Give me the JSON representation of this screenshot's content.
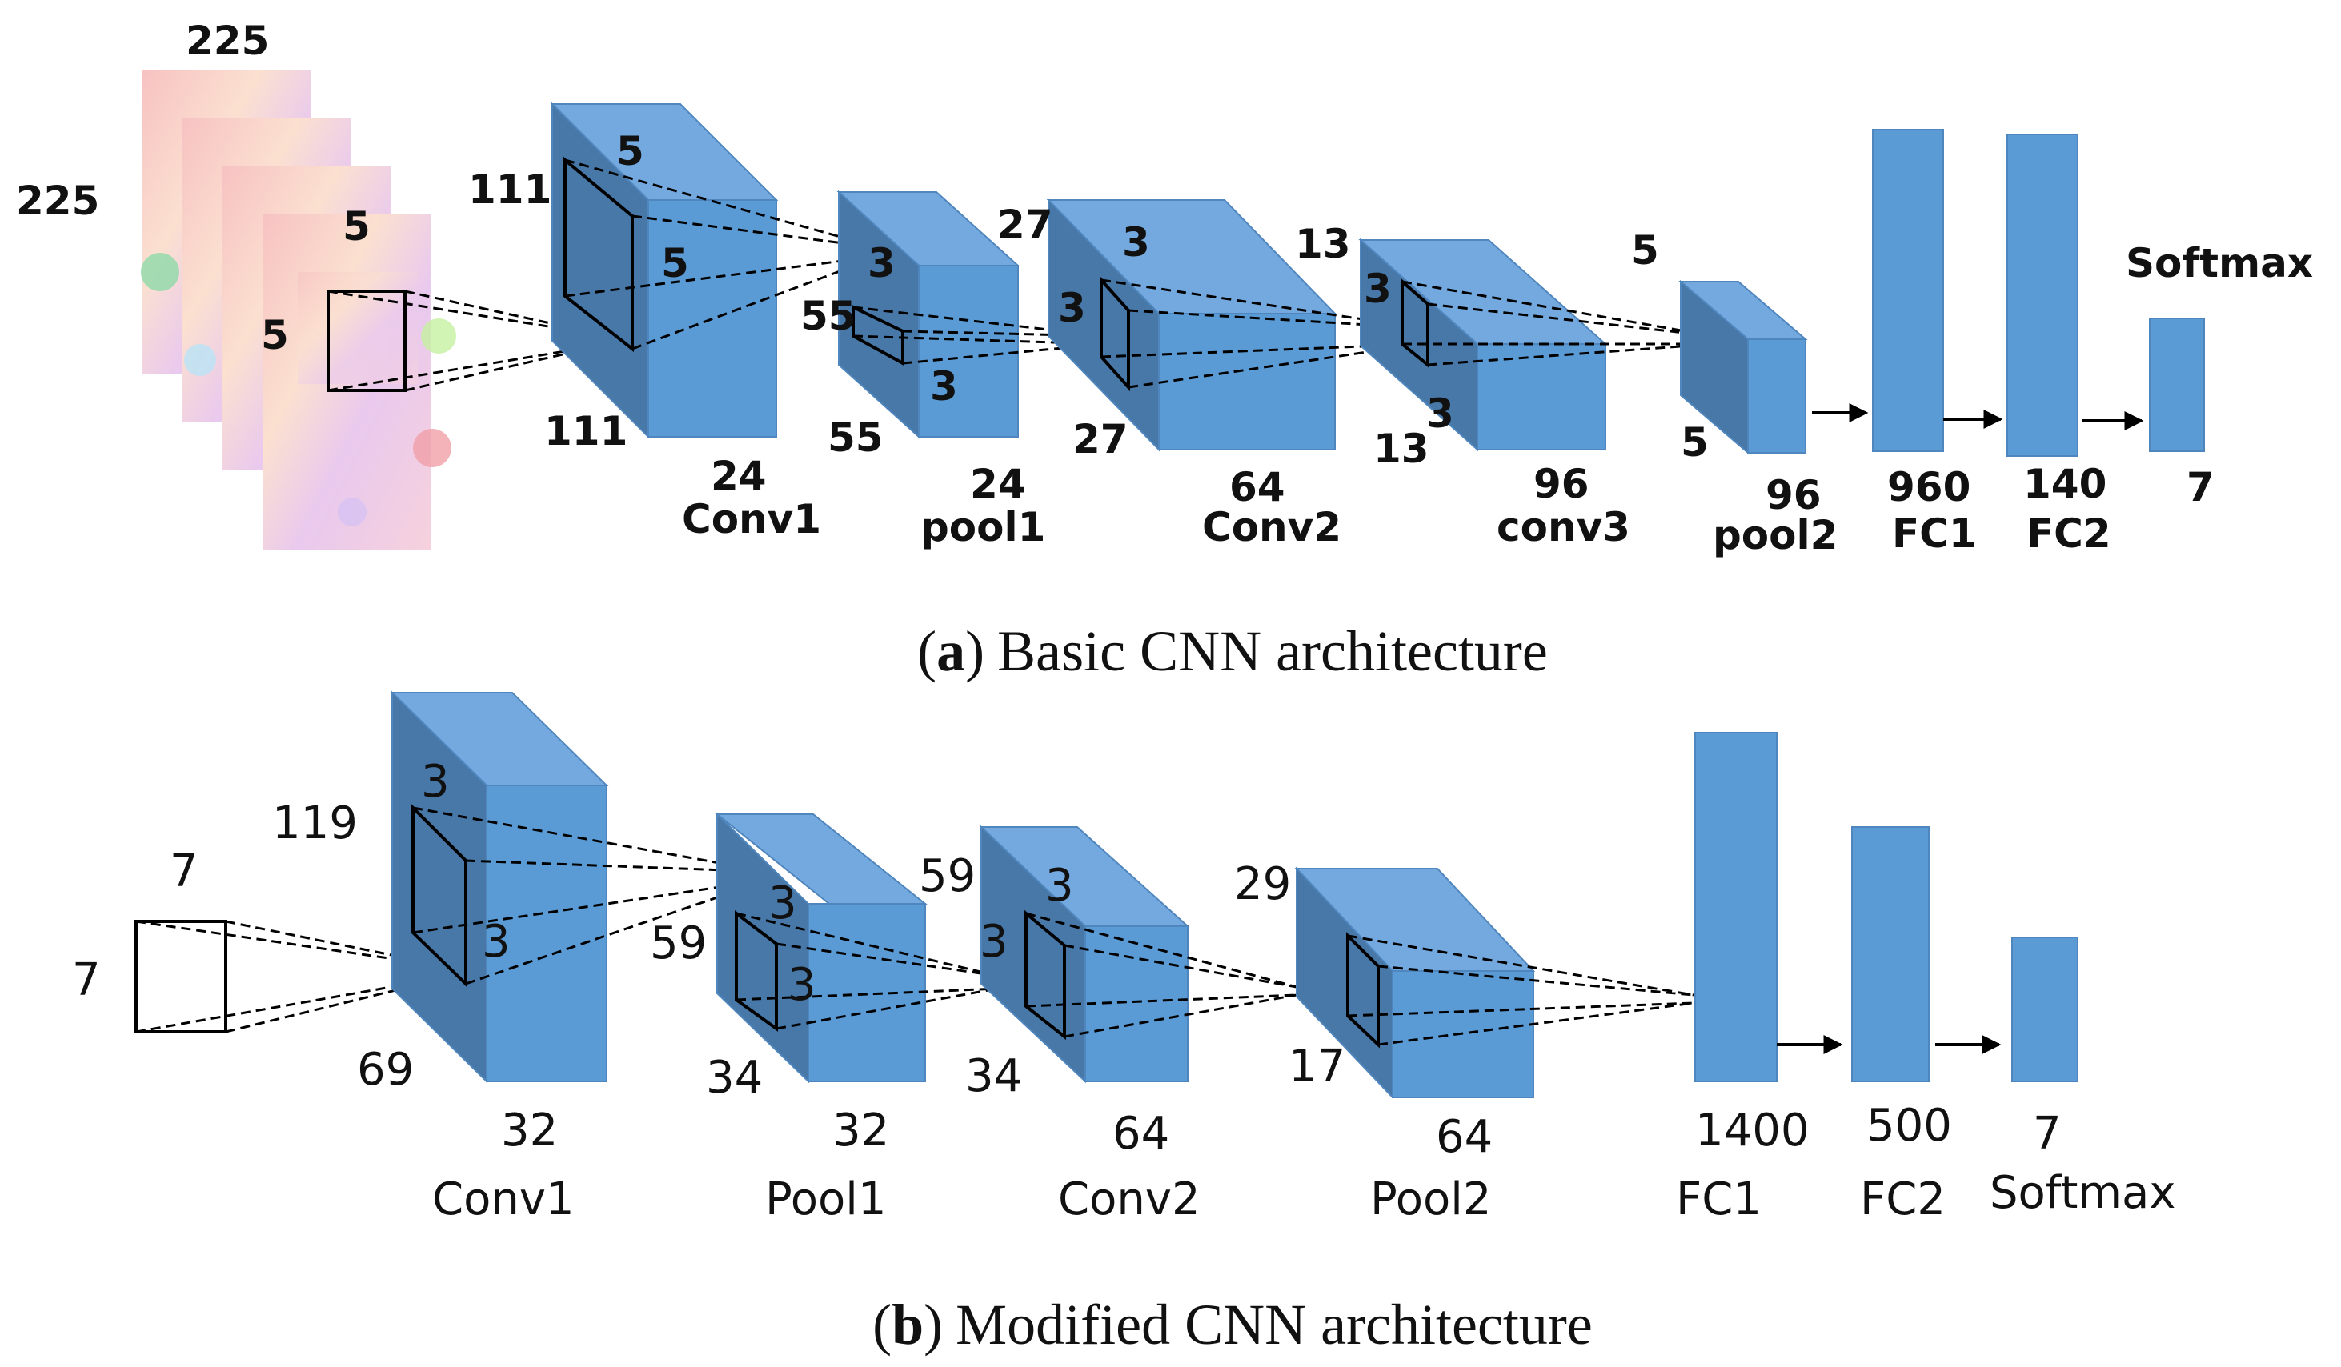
{
  "caption_a": {
    "letter": "a",
    "text": "Basic CNN architecture",
    "open": "(",
    "close": ")"
  },
  "caption_b": {
    "letter": "b",
    "text": "Modified CNN architecture",
    "open": "(",
    "close": ")"
  },
  "colors": {
    "face_front": "#5b9bd5",
    "face_top": "#74a9df",
    "face_side": "#4778a8",
    "edge": "#2e5f8e",
    "image_thumb": "#f4b3b3"
  },
  "basic": {
    "input": {
      "w": "225",
      "h": "225",
      "k1": "5",
      "k2": "5"
    },
    "conv1": {
      "h": "111",
      "w": "111",
      "k1": "5",
      "k2": "5",
      "d": "24",
      "name": "Conv1"
    },
    "pool1": {
      "h": "55",
      "w": "55",
      "k1": "3",
      "k2": "3",
      "d": "24",
      "name": "pool1"
    },
    "conv2": {
      "h": "27",
      "w": "27",
      "k1": "3",
      "k2": "3",
      "d": "64",
      "name": "Conv2"
    },
    "conv3": {
      "h": "13",
      "w": "13",
      "k1": "3",
      "k2": "3",
      "d": "96",
      "name": "conv3"
    },
    "pool2": {
      "h": "5",
      "w": "5",
      "d": "96",
      "name": "pool2"
    },
    "fc1": {
      "n": "960",
      "name": "FC1"
    },
    "fc2": {
      "n": "140",
      "name": "FC2"
    },
    "softmax": {
      "n": "7",
      "name": "Softmax"
    }
  },
  "modified": {
    "input": {
      "w": "7",
      "h": "7"
    },
    "conv1": {
      "h": "119",
      "w": "69",
      "k1": "3",
      "k2": "3",
      "d": "32",
      "name": "Conv1"
    },
    "pool1": {
      "h": "59",
      "w": "34",
      "k1": "3",
      "k2": "3",
      "d": "32",
      "name": "Pool1"
    },
    "conv2": {
      "h": "59",
      "w": "34",
      "k1": "3",
      "k2": "3",
      "d": "64",
      "name": "Conv2"
    },
    "pool2": {
      "h": "29",
      "w": "17",
      "d": "64",
      "name": "Pool2"
    },
    "fc1": {
      "n": "1400",
      "name": "FC1"
    },
    "fc2": {
      "n": "500",
      "name": "FC2"
    },
    "softmax": {
      "n": "7",
      "name": "Softmax"
    }
  }
}
